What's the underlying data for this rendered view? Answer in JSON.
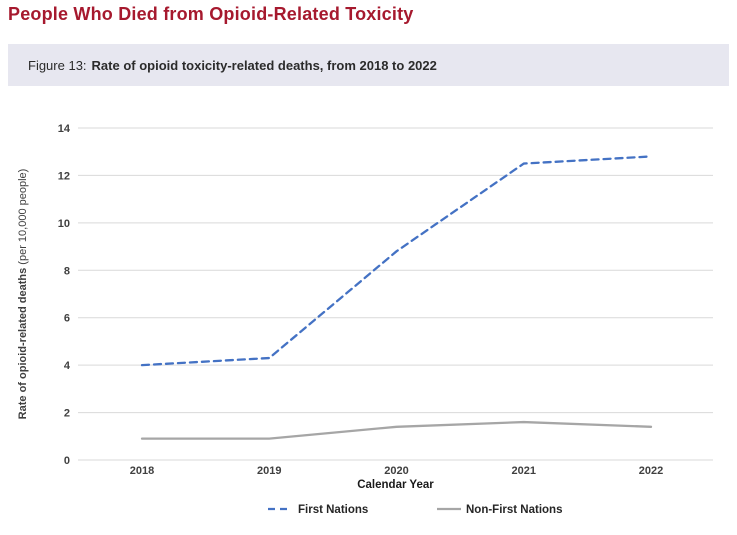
{
  "page_title": "People Who Died from Opioid-Related Toxicity",
  "figure_caption": {
    "prefix": "Figure 13:",
    "title": "Rate of opioid toxicity-related deaths, from 2018 to 2022"
  },
  "chart_data": {
    "type": "line",
    "categories": [
      "2018",
      "2019",
      "2020",
      "2021",
      "2022"
    ],
    "series": [
      {
        "name": "First Nations",
        "values": [
          4.0,
          4.3,
          8.8,
          12.5,
          12.8
        ],
        "color": "#4472C4",
        "dashed": true
      },
      {
        "name": "Non-First Nations",
        "values": [
          0.9,
          0.9,
          1.4,
          1.6,
          1.4
        ],
        "color": "#A6A6A6",
        "dashed": false
      }
    ],
    "xlabel": "Calendar Year",
    "ylabel_bold": "Rate of opioid-related deaths",
    "ylabel_normal": "(per 10,000 people)",
    "ylim": [
      0,
      14
    ],
    "ytick_step": 2,
    "yticks": [
      0,
      2,
      4,
      6,
      8,
      10,
      12,
      14
    ],
    "grid": "horizontal",
    "legend_position": "bottom",
    "colors": {
      "gridline": "#D9D9D9",
      "tick_text": "#404040",
      "first_nations_line": "#4472C4",
      "non_first_nations_line": "#A6A6A6"
    }
  }
}
